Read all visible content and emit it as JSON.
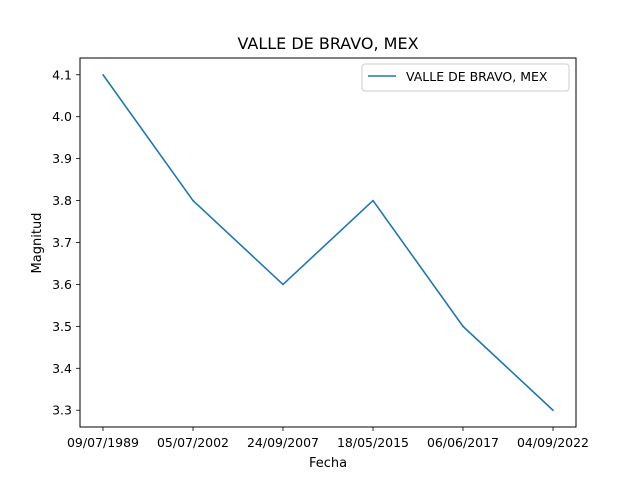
{
  "chart_data": {
    "type": "line",
    "title": "VALLE DE BRAVO, MEX",
    "xlabel": "Fecha",
    "ylabel": "Magnitud",
    "categories": [
      "09/07/1989",
      "05/07/2002",
      "24/09/2007",
      "18/05/2015",
      "06/06/2017",
      "04/09/2022"
    ],
    "series": [
      {
        "name": "VALLE DE BRAVO, MEX",
        "values": [
          4.1,
          3.8,
          3.6,
          3.8,
          3.5,
          3.3
        ],
        "color": "#1f77b4"
      }
    ],
    "yticks": [
      "3.3",
      "3.4",
      "3.5",
      "3.6",
      "3.7",
      "3.8",
      "3.9",
      "4.0",
      "4.1"
    ],
    "ylim": [
      3.26,
      4.14
    ],
    "grid": false,
    "legend_position": "top-right"
  }
}
